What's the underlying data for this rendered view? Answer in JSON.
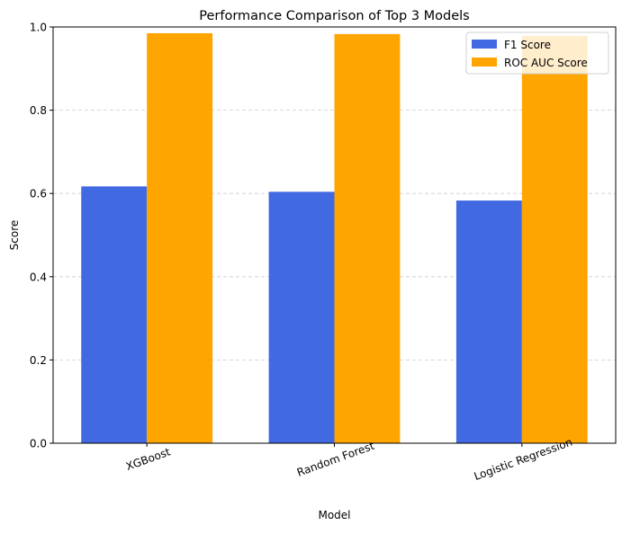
{
  "chart_data": {
    "type": "bar",
    "title": "Performance Comparison of Top 3 Models",
    "xlabel": "Model",
    "ylabel": "Score",
    "categories": [
      "XGBoost",
      "Random Forest",
      "Logistic Regression"
    ],
    "series": [
      {
        "name": "F1 Score",
        "values": [
          0.617,
          0.604,
          0.583
        ],
        "color": "#4169e1"
      },
      {
        "name": "ROC AUC Score",
        "values": [
          0.985,
          0.983,
          0.978
        ],
        "color": "#ffa500"
      }
    ],
    "ylim": [
      0,
      1.0
    ],
    "yticks": [
      "0.0",
      "0.2",
      "0.4",
      "0.6",
      "0.8",
      "1.0"
    ],
    "grid": "horizontal dashed",
    "legend_position": "top-right"
  }
}
